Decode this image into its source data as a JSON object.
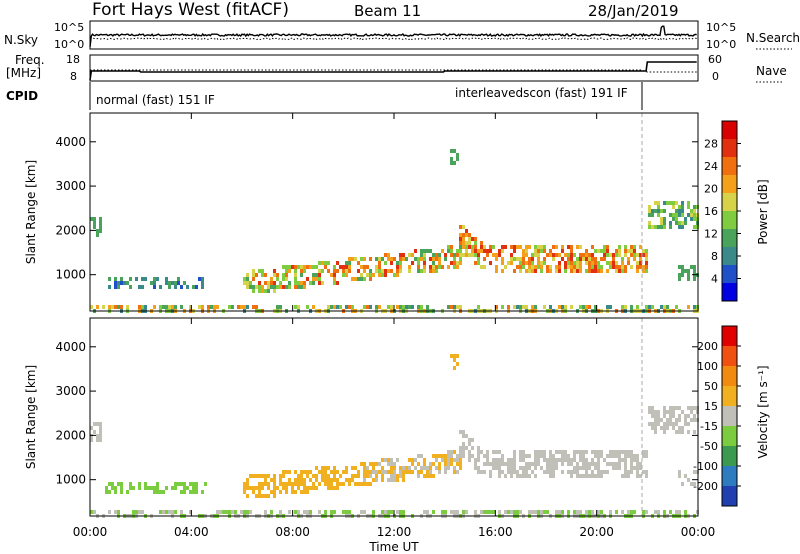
{
  "header": {
    "station": "Fort Hays West (fitACF)",
    "beam": "Beam 11",
    "date": "28/Jan/2019"
  },
  "nsky_panel": {
    "left_label": "N.Sky",
    "left_ticks": [
      "10^5",
      "10^0"
    ],
    "right_label": "N.Search",
    "right_ticks": [
      "10^5",
      "10^0"
    ]
  },
  "freq_panel": {
    "left_label_1": "Freq.",
    "left_label_2": "[MHz]",
    "left_ticks": [
      "18",
      "8"
    ],
    "right_label": "Nave",
    "right_ticks": [
      "60",
      "0"
    ]
  },
  "cpid_panel": {
    "label": "CPID",
    "modes": [
      {
        "label": "normal (fast) 151 IF",
        "start_hour": 0,
        "end_hour": 22
      },
      {
        "label": "interleavedscon (fast) 191 IF",
        "start_hour": 22,
        "end_hour": 24
      }
    ]
  },
  "chart_data": [
    {
      "type": "heatmap",
      "name": "power",
      "ylabel": "Slant Range [km]",
      "yticks": [
        "4000",
        "3000",
        "2000",
        "1000"
      ],
      "ylim": [
        180,
        4650
      ],
      "xlim": [
        0,
        24
      ],
      "colorbar_label": "Power [dB]",
      "colorbar_ticks": [
        "28",
        "24",
        "20",
        "16",
        "12",
        "8",
        "4"
      ],
      "colorbar_colors": [
        "#0000e0",
        "#2050c8",
        "#3a8a8a",
        "#49a35a",
        "#7fcc40",
        "#d6d24a",
        "#f5a01a",
        "#f07010",
        "#e03010",
        "#d80000"
      ],
      "features": [
        {
          "label": "E-region band",
          "x": [
            0,
            24
          ],
          "range_km": [
            200,
            350
          ],
          "power_db": 14
        },
        {
          "label": "morning band",
          "x": [
            0.5,
            4.5
          ],
          "range_km": [
            700,
            950
          ],
          "power_db": 8
        },
        {
          "label": "rising band",
          "x": [
            6,
            14.5
          ],
          "range_km": [
            800,
            1600
          ],
          "power_db": 18
        },
        {
          "label": "afternoon band",
          "x": [
            14.5,
            22
          ],
          "range_km": [
            1000,
            2200
          ],
          "power_db": 22
        },
        {
          "label": "late band",
          "x": [
            22,
            24
          ],
          "range_km": [
            2100,
            2700
          ],
          "power_db": 12
        }
      ]
    },
    {
      "type": "heatmap",
      "name": "velocity",
      "ylabel": "Slant Range [km]",
      "yticks": [
        "4000",
        "3000",
        "2000",
        "1000"
      ],
      "ylim": [
        180,
        4650
      ],
      "xlim": [
        0,
        24
      ],
      "colorbar_label": "Velocity [m s⁻¹]",
      "colorbar_ticks": [
        "200",
        "100",
        "50",
        "15",
        "-15",
        "-50",
        "-100",
        "-200"
      ],
      "colorbar_colors": [
        "#2040b0",
        "#2e7bbf",
        "#3c9a50",
        "#7ccc40",
        "#c0c0b8",
        "#f0b020",
        "#f08a10",
        "#f05010",
        "#e00000"
      ],
      "x_ticks": [
        "00:00",
        "04:00",
        "08:00",
        "12:00",
        "16:00",
        "20:00",
        "00:00"
      ],
      "xlabel": "Time UT"
    }
  ]
}
